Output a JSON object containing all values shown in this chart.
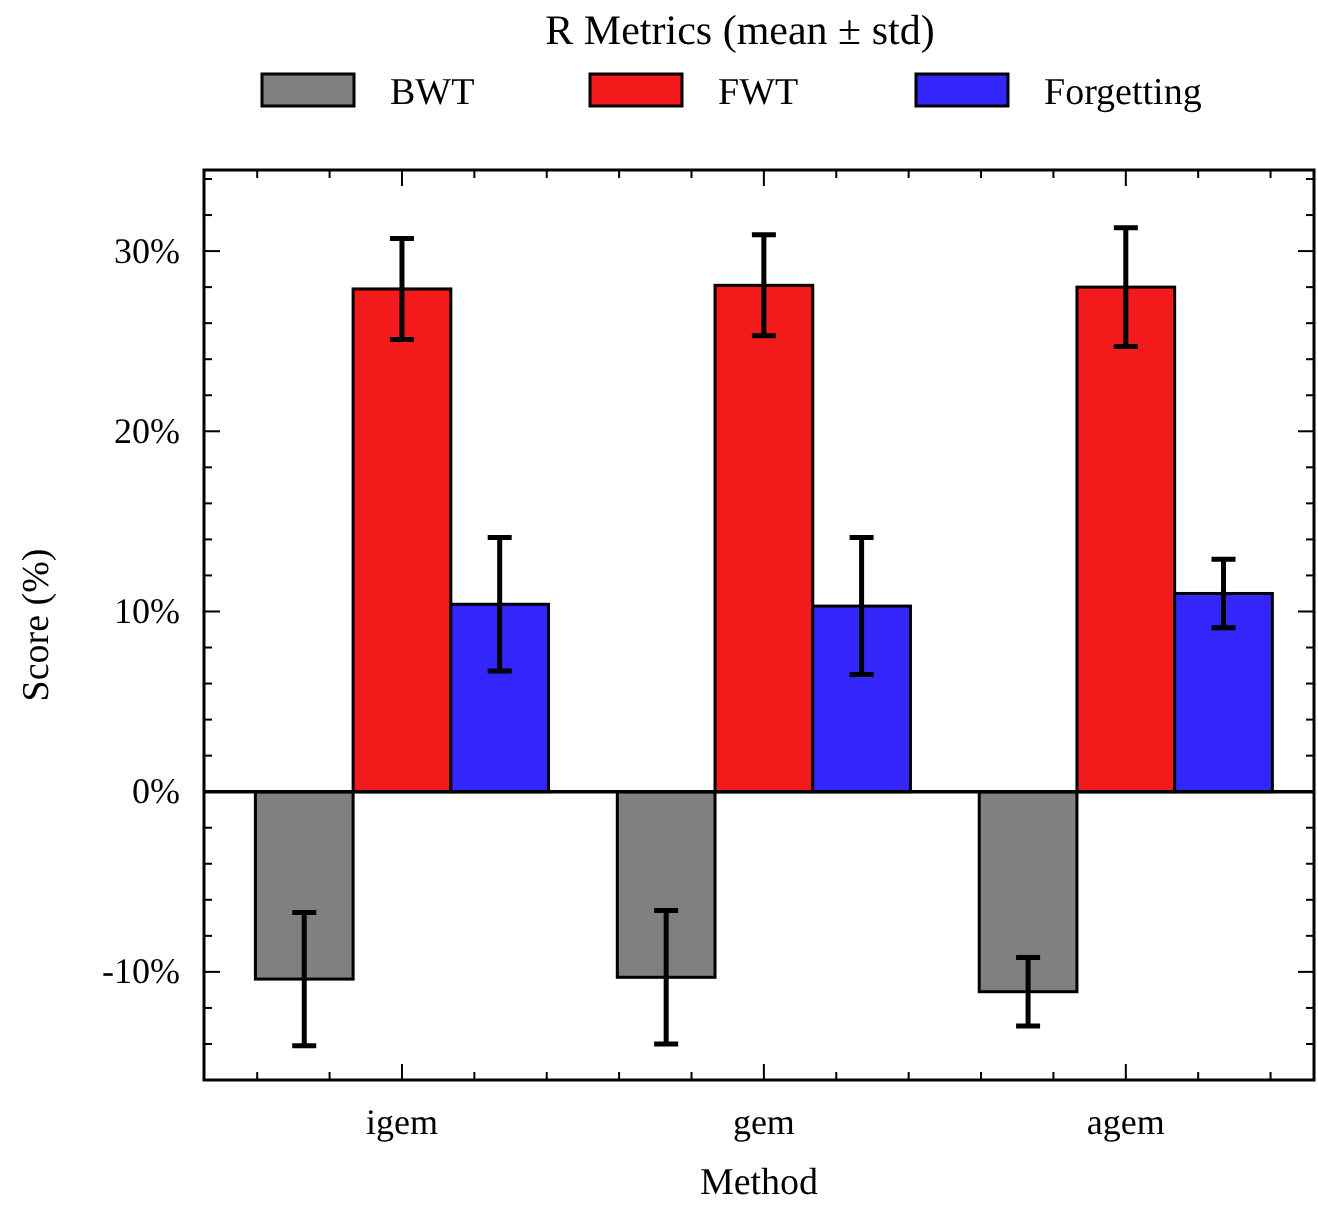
{
  "chart_data": {
    "type": "bar",
    "legend_title": "R Metrics (mean ± std)",
    "xlabel": "Method",
    "ylabel": "Score (%)",
    "categories": [
      "igem",
      "gem",
      "agem"
    ],
    "series": [
      {
        "name": "BWT",
        "color": "#808080",
        "values": [
          -10.4,
          -10.3,
          -11.1
        ],
        "errors": [
          3.7,
          3.7,
          1.9
        ]
      },
      {
        "name": "FWT",
        "color": "#f21a1a",
        "values": [
          27.9,
          28.1,
          28.0
        ],
        "errors": [
          2.8,
          2.8,
          3.3
        ]
      },
      {
        "name": "Forgetting",
        "color": "#3326fa",
        "values": [
          10.4,
          10.3,
          11.0
        ],
        "errors": [
          3.7,
          3.8,
          1.9
        ]
      }
    ],
    "ylim": [
      -16,
      34.5
    ],
    "yticks": [
      {
        "value": -10,
        "label": "-10%"
      },
      {
        "value": 0,
        "label": "0%"
      },
      {
        "value": 10,
        "label": "10%"
      },
      {
        "value": 20,
        "label": "20%"
      },
      {
        "value": 30,
        "label": "30%"
      }
    ],
    "ref_lines": [
      {
        "axis": "y",
        "value": 0,
        "color": "#000000"
      }
    ],
    "grid": false,
    "legend": "top"
  }
}
